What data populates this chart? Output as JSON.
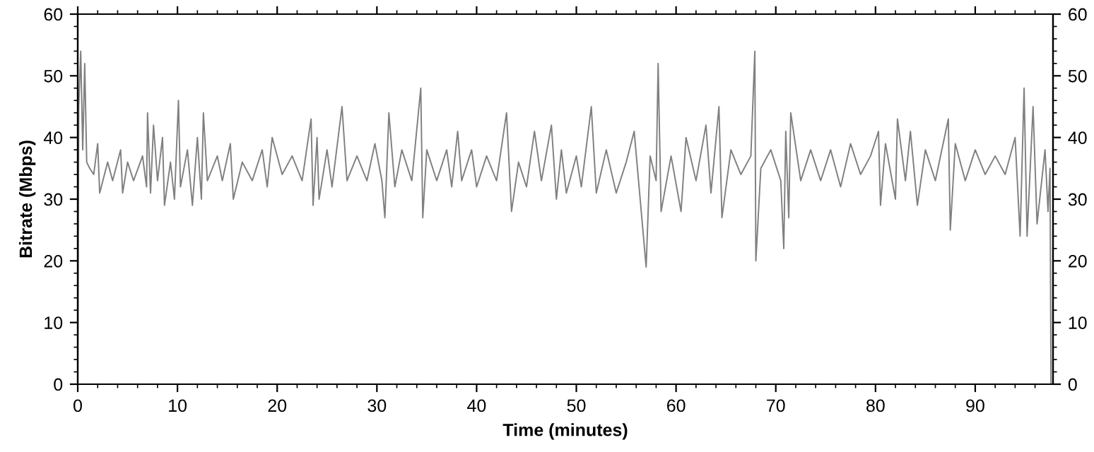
{
  "chart_data": {
    "type": "line",
    "xlabel": "Time (minutes)",
    "ylabel": "Bitrate (Mbps)",
    "xlim": [
      0,
      97.8
    ],
    "xticks": [
      0,
      10,
      20,
      30,
      40,
      50,
      60,
      70,
      80,
      90
    ],
    "ylim": [
      0,
      60
    ],
    "yticks": [
      0,
      10,
      20,
      30,
      40,
      50,
      60
    ],
    "y2lim": [
      0,
      60
    ],
    "y2ticks": [
      0,
      10,
      20,
      30,
      40,
      50,
      60
    ],
    "grid": false,
    "marker": "none",
    "line_style": "solid",
    "x": [
      0,
      0.1,
      0.3,
      0.5,
      0.7,
      0.9,
      1.2,
      1.6,
      2,
      2.2,
      3,
      3.5,
      4.3,
      4.5,
      5,
      5.6,
      6.5,
      6.9,
      7.0,
      7.3,
      7.6,
      8,
      8.5,
      8.7,
      9.3,
      9.7,
      10.1,
      10.3,
      11,
      11.5,
      12,
      12.4,
      12.6,
      13,
      14,
      14.5,
      15.3,
      15.6,
      16.5,
      17.5,
      18.5,
      19,
      19.5,
      20.5,
      21.5,
      22.5,
      23.4,
      23.6,
      24,
      24.2,
      25,
      25.5,
      26.5,
      27,
      28,
      29,
      29.8,
      30.5,
      30.8,
      31.2,
      31.8,
      32.5,
      33.5,
      34.4,
      34.6,
      35,
      36,
      37,
      37.5,
      38.1,
      38.5,
      39.5,
      40,
      41,
      42,
      43,
      43.5,
      44.2,
      45,
      45.8,
      46.5,
      47.5,
      48,
      48.5,
      49,
      50,
      50.5,
      51.5,
      52,
      53,
      54,
      55,
      55.8,
      56.4,
      57,
      57.4,
      58,
      58.2,
      58.5,
      59.5,
      60.5,
      61,
      62,
      63,
      63.5,
      64.3,
      64.6,
      65.5,
      66.5,
      67.5,
      67.9,
      68.0,
      68.5,
      69.5,
      70.5,
      70.8,
      71,
      71.3,
      71.5,
      72.5,
      73.5,
      74.5,
      75.5,
      76.5,
      77.5,
      78.5,
      79.5,
      80.3,
      80.5,
      81,
      82,
      82.2,
      83,
      83.5,
      84.2,
      85,
      86,
      87.3,
      87.5,
      88,
      89,
      90,
      91,
      92,
      93,
      94,
      94.5,
      94.9,
      95.2,
      95.8,
      96.2,
      97,
      97.3,
      97.5,
      97.6
    ],
    "series": [
      {
        "color": "#808080",
        "values": [
          0,
          45,
          54,
          38,
          52,
          36,
          35,
          34,
          39,
          31,
          36,
          33,
          38,
          31,
          36,
          33,
          37,
          32,
          44,
          31,
          42,
          33,
          40,
          29,
          36,
          30,
          46,
          32,
          38,
          29,
          40,
          30,
          44,
          33,
          37,
          33,
          39,
          30,
          36,
          33,
          38,
          32,
          40,
          34,
          37,
          33,
          43,
          29,
          40,
          30,
          38,
          32,
          45,
          33,
          37,
          33,
          39,
          33,
          27,
          44,
          32,
          38,
          33,
          48,
          27,
          38,
          33,
          38,
          32,
          41,
          33,
          38,
          32,
          37,
          33,
          44,
          28,
          36,
          32,
          41,
          33,
          42,
          30,
          38,
          31,
          37,
          32,
          45,
          31,
          38,
          31,
          36,
          41,
          30,
          19,
          37,
          33,
          52,
          28,
          37,
          28,
          40,
          33,
          42,
          31,
          45,
          27,
          38,
          34,
          37,
          54,
          20,
          35,
          38,
          33,
          22,
          41,
          27,
          44,
          33,
          38,
          33,
          38,
          32,
          39,
          34,
          37,
          41,
          29,
          39,
          30,
          43,
          33,
          41,
          29,
          38,
          33,
          43,
          25,
          39,
          33,
          38,
          34,
          37,
          34,
          40,
          24,
          48,
          24,
          45,
          26,
          38,
          28,
          35,
          0
        ]
      }
    ]
  }
}
